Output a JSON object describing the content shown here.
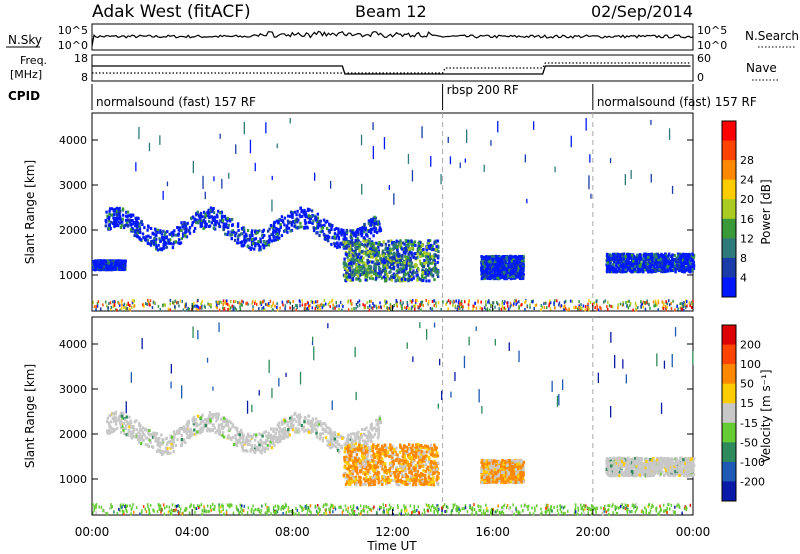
{
  "header": {
    "station": "Adak West (fitACF)",
    "beam": "Beam 12",
    "date": "02/Sep/2014"
  },
  "noise_panel": {
    "left_label": "N.Sky",
    "right_label": "N.Search",
    "ticks_left": [
      "10^5",
      "10^0"
    ],
    "ticks_right": [
      "10^5",
      "10^0"
    ]
  },
  "freq_panel": {
    "left_label_1": "Freq.",
    "left_label_2": "[MHz]",
    "right_label": "Nave",
    "ticks_left": [
      "18",
      "8"
    ],
    "ticks_right": [
      "60",
      "0"
    ]
  },
  "cpid_panel": {
    "label": "CPID",
    "segments": [
      {
        "text": "normalsound (fast) 157 RF",
        "start_hour": 0,
        "end_hour": 14
      },
      {
        "text": "rbsp 200 RF",
        "start_hour": 14,
        "end_hour": 20
      },
      {
        "text": "normalsound (fast) 157 RF",
        "start_hour": 20,
        "end_hour": 24
      }
    ]
  },
  "time_axis": {
    "label": "Time UT",
    "ticks": [
      "00:00",
      "04:00",
      "08:00",
      "12:00",
      "16:00",
      "20:00",
      "00:00"
    ]
  },
  "chart_data": [
    {
      "type": "heatmap",
      "quantity": "power",
      "ylabel": "Slant Range [km]",
      "yticks": [
        "1000",
        "2000",
        "3000",
        "4000"
      ],
      "ylim": [
        200,
        4600
      ],
      "xlim_hours": [
        0,
        24
      ],
      "colorbar_label": "Power [dB]",
      "colorbar_ticks": [
        "4",
        "8",
        "12",
        "16",
        "20",
        "24",
        "28"
      ],
      "colorbar_colors": [
        "#0018ff",
        "#1a3ca8",
        "#2e7a7a",
        "#3a9a3a",
        "#aacc22",
        "#ffcc00",
        "#ff8800",
        "#ff4400",
        "#ff0000"
      ],
      "regions": [
        {
          "t0": 0.5,
          "t1": 11.5,
          "r0": 1700,
          "r1": 2500,
          "level": "low-mid"
        },
        {
          "t0": 10.0,
          "t1": 13.8,
          "r0": 900,
          "r1": 1800,
          "level": "mid"
        },
        {
          "t0": 0.0,
          "t1": 1.3,
          "r0": 1150,
          "r1": 1350,
          "level": "low"
        },
        {
          "t0": 15.5,
          "t1": 17.2,
          "r0": 950,
          "r1": 1450,
          "level": "low"
        },
        {
          "t0": 20.5,
          "t1": 24.0,
          "r0": 1100,
          "r1": 1500,
          "level": "low"
        }
      ]
    },
    {
      "type": "heatmap",
      "quantity": "velocity",
      "ylabel": "Slant Range [km]",
      "yticks": [
        "1000",
        "2000",
        "3000",
        "4000"
      ],
      "ylim": [
        200,
        4600
      ],
      "xlim_hours": [
        0,
        24
      ],
      "colorbar_label": "Velocity [m s⁻¹]",
      "colorbar_ticks": [
        "200",
        "100",
        "50",
        "15",
        "-15",
        "-50",
        "-100",
        "-200"
      ],
      "colorbar_colors": [
        "#0a1aa8",
        "#1e5ab4",
        "#2e8a5a",
        "#66cc33",
        "#c8c8c8",
        "#ffcc00",
        "#ff8800",
        "#ff4400",
        "#dd0000"
      ],
      "regions": [
        {
          "t0": 0.5,
          "t1": 11.5,
          "r0": 1700,
          "r1": 2700,
          "level": "ground"
        },
        {
          "t0": 10.0,
          "t1": 13.8,
          "r0": 900,
          "r1": 1800,
          "level": "negative"
        },
        {
          "t0": 15.5,
          "t1": 17.2,
          "r0": 950,
          "r1": 1450,
          "level": "negative-weak"
        },
        {
          "t0": 20.5,
          "t1": 24.0,
          "r0": 1100,
          "r1": 1500,
          "level": "ground"
        }
      ]
    }
  ]
}
